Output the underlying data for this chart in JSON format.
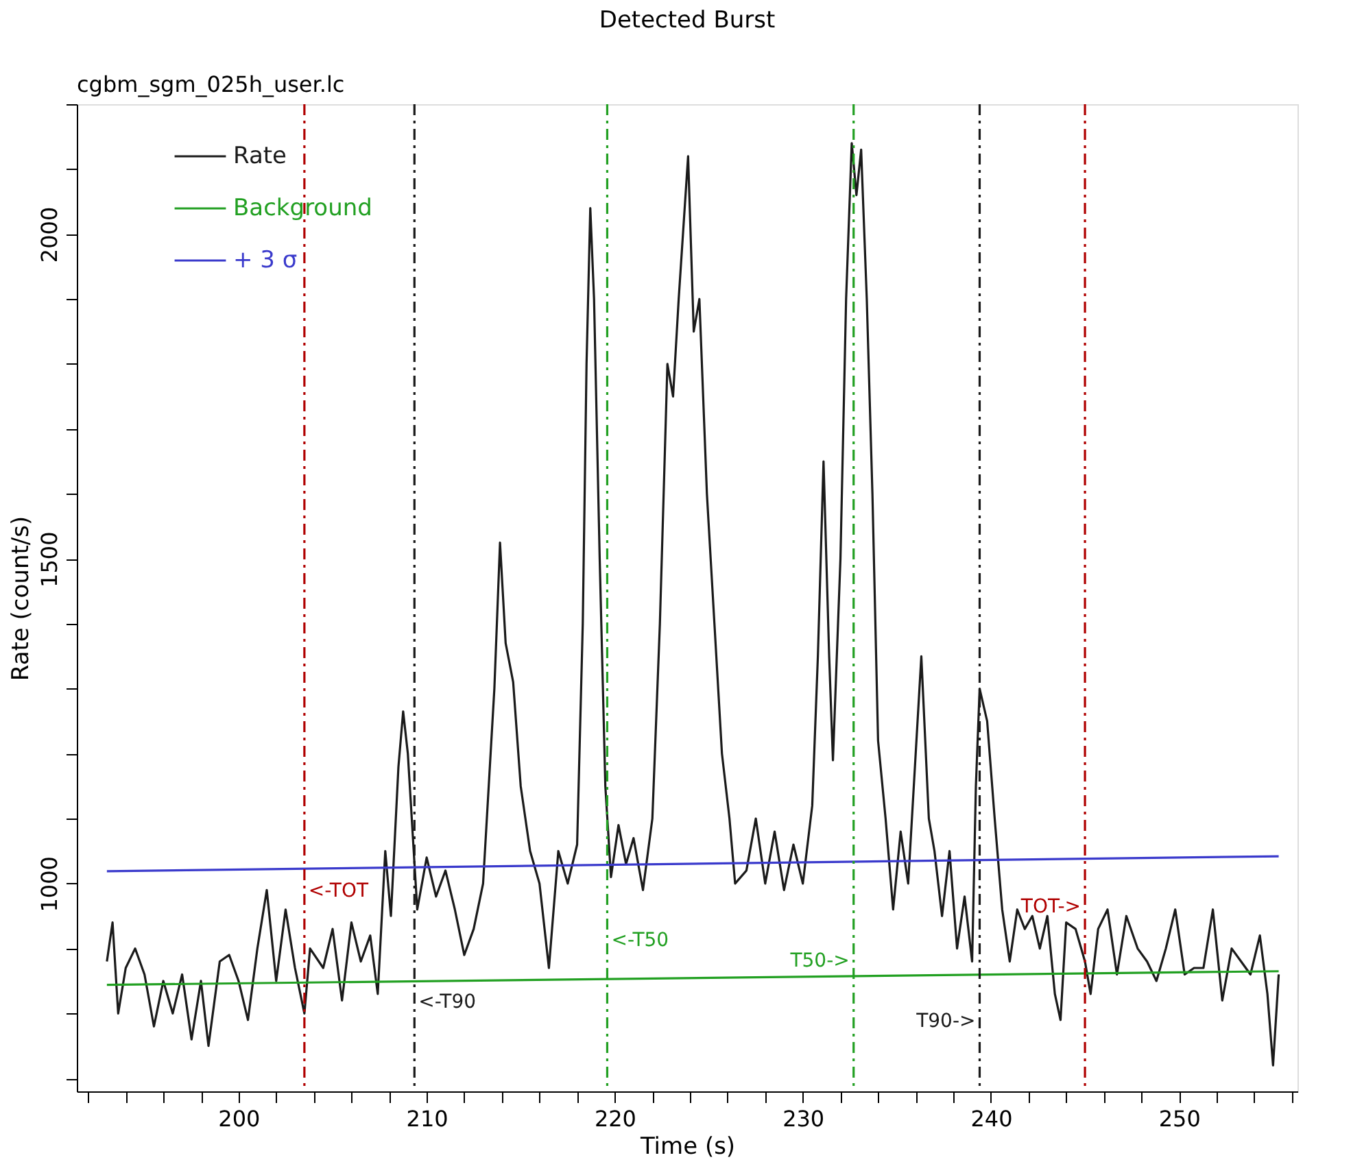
{
  "chart_data": {
    "type": "line",
    "title": "Detected Burst",
    "subtitle": "cgbm_sgm_025h_user.lc",
    "xlabel": "Time (s)",
    "ylabel": "Rate (count/s)",
    "xlim": [
      191.4,
      256.3
    ],
    "ylim": [
      680,
      2200
    ],
    "xticks": [
      {
        "value": 192,
        "label": null
      },
      {
        "value": 194,
        "label": null
      },
      {
        "value": 196,
        "label": null
      },
      {
        "value": 198,
        "label": null
      },
      200,
      {
        "value": 202,
        "label": null
      },
      {
        "value": 204,
        "label": null
      },
      {
        "value": 206,
        "label": null
      },
      {
        "value": 208,
        "label": null
      },
      210,
      {
        "value": 212,
        "label": null
      },
      {
        "value": 214,
        "label": null
      },
      {
        "value": 216,
        "label": null
      },
      {
        "value": 218,
        "label": null
      },
      220,
      {
        "value": 222,
        "label": null
      },
      {
        "value": 224,
        "label": null
      },
      {
        "value": 226,
        "label": null
      },
      {
        "value": 228,
        "label": null
      },
      230,
      {
        "value": 232,
        "label": null
      },
      {
        "value": 234,
        "label": null
      },
      {
        "value": 236,
        "label": null
      },
      {
        "value": 238,
        "label": null
      },
      240,
      {
        "value": 242,
        "label": null
      },
      {
        "value": 244,
        "label": null
      },
      {
        "value": 246,
        "label": null
      },
      {
        "value": 248,
        "label": null
      },
      250,
      {
        "value": 252,
        "label": null
      },
      {
        "value": 254,
        "label": null
      },
      {
        "value": 256,
        "label": null
      }
    ],
    "yticks": [
      {
        "value": 700,
        "label": null
      },
      {
        "value": 800,
        "label": null
      },
      {
        "value": 900,
        "label": null
      },
      1000,
      {
        "value": 1100,
        "label": null
      },
      {
        "value": 1200,
        "label": null
      },
      {
        "value": 1300,
        "label": null
      },
      {
        "value": 1400,
        "label": null
      },
      1500,
      {
        "value": 1600,
        "label": null
      },
      {
        "value": 1700,
        "label": null
      },
      {
        "value": 1800,
        "label": null
      },
      {
        "value": 1900,
        "label": null
      },
      2000,
      {
        "value": 2100,
        "label": null
      },
      {
        "value": 2200,
        "label": null
      }
    ],
    "grid": false,
    "legend": "top left",
    "marker": "none",
    "line_style": "solid",
    "series": [
      {
        "name": "Rate",
        "color": "#1a1a1a",
        "x": [
          193.0,
          193.3,
          193.6,
          194.0,
          194.5,
          195.0,
          195.5,
          196.0,
          196.5,
          197.0,
          197.5,
          198.0,
          198.4,
          199.0,
          199.5,
          200.0,
          200.5,
          201.0,
          201.5,
          202.0,
          202.5,
          203.0,
          203.5,
          203.8,
          204.5,
          205.0,
          205.5,
          206.0,
          206.5,
          207.0,
          207.4,
          207.8,
          208.1,
          208.5,
          208.75,
          209.0,
          209.5,
          210.0,
          210.5,
          211.0,
          211.5,
          212.0,
          212.5,
          213.0,
          213.6,
          213.9,
          214.2,
          214.6,
          215.0,
          215.5,
          216.0,
          216.5,
          217.0,
          217.5,
          218.0,
          218.3,
          218.5,
          218.7,
          218.9,
          219.2,
          219.5,
          219.8,
          220.2,
          220.6,
          221.0,
          221.5,
          222.0,
          222.4,
          222.8,
          223.1,
          223.4,
          223.9,
          224.2,
          224.5,
          224.9,
          225.3,
          225.7,
          226.1,
          226.4,
          227.0,
          227.5,
          228.0,
          228.5,
          229.0,
          229.5,
          230.0,
          230.5,
          230.8,
          231.1,
          231.4,
          231.6,
          232.0,
          232.3,
          232.6,
          232.85,
          233.1,
          233.4,
          233.7,
          234.0,
          234.4,
          234.8,
          235.2,
          235.6,
          236.0,
          236.3,
          236.7,
          237.0,
          237.4,
          237.8,
          238.2,
          238.6,
          239.0,
          239.2,
          239.4,
          239.8,
          240.2,
          240.6,
          241.0,
          241.4,
          241.8,
          242.2,
          242.6,
          243.0,
          243.4,
          243.7,
          244.0,
          244.5,
          245.0,
          245.3,
          245.7,
          246.2,
          246.7,
          247.2,
          247.8,
          248.3,
          248.8,
          249.3,
          249.8,
          250.3,
          250.8,
          251.3,
          251.8,
          252.3,
          252.8,
          253.3,
          253.8,
          254.3,
          254.7,
          255.0,
          255.3
        ],
        "values": [
          880,
          940,
          800,
          870,
          900,
          860,
          780,
          850,
          800,
          860,
          760,
          850,
          750,
          880,
          890,
          850,
          790,
          900,
          990,
          850,
          960,
          870,
          800,
          900,
          870,
          930,
          820,
          940,
          880,
          920,
          830,
          1050,
          950,
          1180,
          1265,
          1200,
          960,
          1040,
          980,
          1020,
          960,
          890,
          930,
          1000,
          1300,
          1525,
          1370,
          1310,
          1150,
          1050,
          1000,
          870,
          1050,
          1000,
          1060,
          1400,
          1800,
          2040,
          1900,
          1500,
          1150,
          1010,
          1090,
          1030,
          1070,
          990,
          1100,
          1400,
          1800,
          1750,
          1900,
          2120,
          1850,
          1900,
          1600,
          1400,
          1200,
          1100,
          1000,
          1020,
          1100,
          1000,
          1080,
          990,
          1060,
          1000,
          1120,
          1350,
          1650,
          1350,
          1190,
          1500,
          1900,
          2140,
          2060,
          2130,
          1900,
          1600,
          1220,
          1100,
          960,
          1080,
          1000,
          1200,
          1350,
          1100,
          1050,
          950,
          1050,
          900,
          980,
          880,
          1150,
          1300,
          1250,
          1100,
          960,
          880,
          960,
          930,
          950,
          900,
          950,
          830,
          790,
          940,
          930,
          880,
          830,
          930,
          960,
          860,
          950,
          900,
          880,
          850,
          900,
          960,
          860,
          870,
          870,
          960,
          820,
          900,
          880,
          860,
          920,
          830,
          720,
          860
        ]
      },
      {
        "name": "Background",
        "color": "#22a022",
        "x": [
          193.0,
          255.3
        ],
        "values": [
          844,
          865
        ]
      },
      {
        "name": "+ 3 σ",
        "color": "#3a3acc",
        "x": [
          193.0,
          255.3
        ],
        "values": [
          1019,
          1042
        ]
      }
    ],
    "ref_lines": [
      {
        "axis": "x",
        "value": 203.5,
        "color": "#b00000",
        "line_style": "dashed",
        "label": "<-TOT"
      },
      {
        "axis": "x",
        "value": 209.35,
        "color": "#1a1a1a",
        "line_style": "dashed",
        "label": "<-T90"
      },
      {
        "axis": "x",
        "value": 219.6,
        "color": "#22a022",
        "line_style": "dashed",
        "label": "<-T50"
      },
      {
        "axis": "x",
        "value": 232.7,
        "color": "#22a022",
        "line_style": "dashed",
        "label": "T50->"
      },
      {
        "axis": "x",
        "value": 239.4,
        "color": "#1a1a1a",
        "line_style": "dashed",
        "label": "T90->"
      },
      {
        "axis": "x",
        "value": 245.0,
        "color": "#b00000",
        "line_style": "dashed",
        "label": "TOT->"
      }
    ]
  }
}
